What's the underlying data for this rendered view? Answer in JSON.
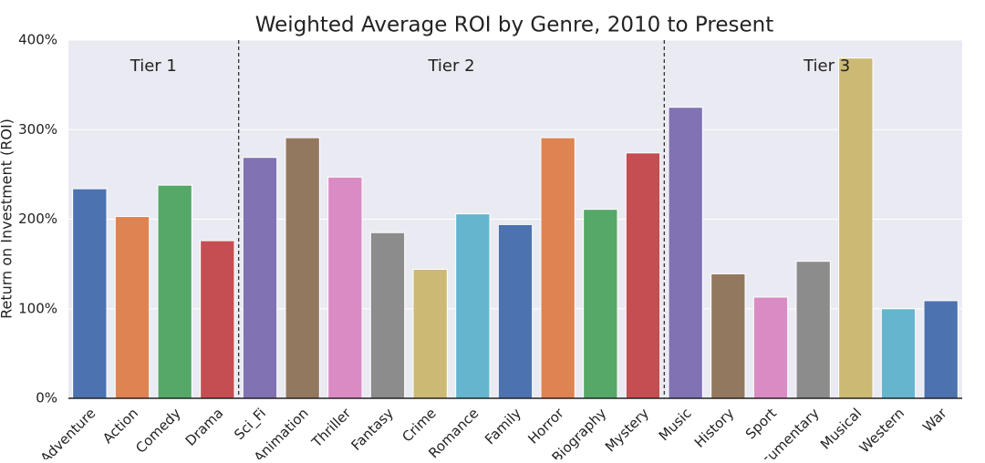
{
  "chart_data": {
    "type": "bar",
    "title": "Weighted Average ROI by Genre, 2010 to Present",
    "y_label": "Return on Investment (ROI)",
    "annotations": [
      "Tier 1",
      "Tier 2",
      "Tier 3"
    ],
    "categories": [
      "Adventure",
      "Action",
      "Comedy",
      "Drama",
      "Sci_Fi",
      "Animation",
      "Thriller",
      "Fantasy",
      "Crime",
      "Romance",
      "Family",
      "Horror",
      "Biography",
      "Mystery",
      "Music",
      "History",
      "Sport",
      "Documentary",
      "Musical",
      "Western",
      "War"
    ],
    "values": [
      234,
      203,
      238,
      176,
      269,
      291,
      247,
      185,
      144,
      206,
      194,
      291,
      211,
      274,
      325,
      139,
      113,
      153,
      380,
      100,
      109
    ],
    "colors": [
      "#4c72b0",
      "#dd8452",
      "#55a868",
      "#c44e52",
      "#8172b3",
      "#937860",
      "#da8bc3",
      "#8c8c8c",
      "#ccb974",
      "#64b5cd",
      "#4c72b0",
      "#dd8452",
      "#55a868",
      "#c44e52",
      "#8172b3",
      "#937860",
      "#da8bc3",
      "#8c8c8c",
      "#ccb974",
      "#64b5cd",
      "#4c72b0"
    ],
    "ylim": [
      0,
      400
    ],
    "yticks": [
      {
        "value": 0,
        "label": "0%"
      },
      {
        "value": 100,
        "label": "100%"
      },
      {
        "value": 200,
        "label": "200%"
      },
      {
        "value": 300,
        "label": "300%"
      },
      {
        "value": 400,
        "label": "400%"
      }
    ],
    "grid": true
  }
}
